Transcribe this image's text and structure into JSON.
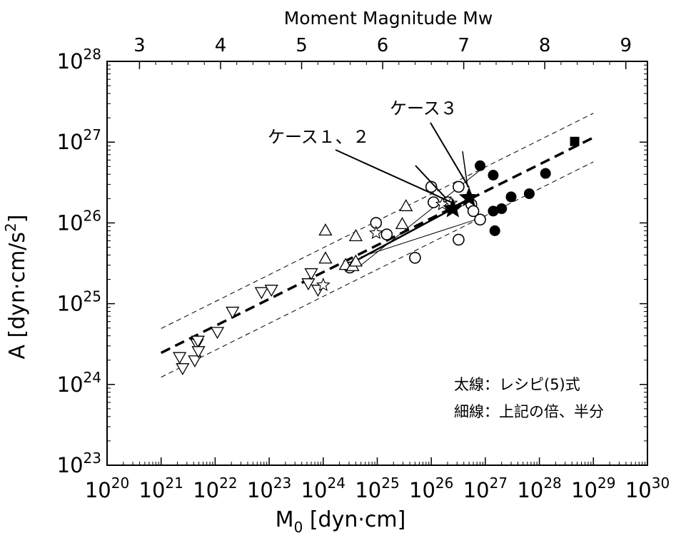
{
  "chart_data": {
    "type": "scatter",
    "title": "",
    "xlabel": "M",
    "xlabel_sub": "0",
    "xlabel_unit": " [dyn·cm]",
    "ylabel": "A [dyn·cm/s",
    "ylabel_sup": "2",
    "ylabel_end": "]",
    "top_axis_label": "Moment Magnitude Mw",
    "x_scale": "log",
    "y_scale": "log",
    "xlim": [
      1e+20,
      1e+30
    ],
    "ylim": [
      1e+23,
      1e+28
    ],
    "x_ticks": [
      {
        "base": "10",
        "exp": "20"
      },
      {
        "base": "10",
        "exp": "21"
      },
      {
        "base": "10",
        "exp": "22"
      },
      {
        "base": "10",
        "exp": "23"
      },
      {
        "base": "10",
        "exp": "24"
      },
      {
        "base": "10",
        "exp": "25"
      },
      {
        "base": "10",
        "exp": "26"
      },
      {
        "base": "10",
        "exp": "27"
      },
      {
        "base": "10",
        "exp": "28"
      },
      {
        "base": "10",
        "exp": "29"
      },
      {
        "base": "10",
        "exp": "30"
      }
    ],
    "y_ticks": [
      {
        "base": "10",
        "exp": "23"
      },
      {
        "base": "10",
        "exp": "24"
      },
      {
        "base": "10",
        "exp": "25"
      },
      {
        "base": "10",
        "exp": "26"
      },
      {
        "base": "10",
        "exp": "27"
      },
      {
        "base": "10",
        "exp": "28"
      }
    ],
    "top_ticks": [
      "3",
      "4",
      "5",
      "6",
      "7",
      "8",
      "9"
    ],
    "top_tick_values": [
      3,
      4,
      5,
      6,
      7,
      8,
      9
    ],
    "recipe_line": {
      "x": [
        1e+21,
        1e+29
      ],
      "y": [
        2.46e+24,
        1.14e+27
      ]
    },
    "bold_segment": {
      "x": [
        3.7e+24,
        2.5e+26
      ],
      "y": [
        3.3e+25,
        1.5e+26
      ]
    },
    "thin_lines": [
      {
        "x": [
          5e+24,
          8e+26
        ],
        "y": [
          3e+25,
          4.5e+26
        ]
      },
      {
        "x": [
          5e+24,
          1e+27
        ],
        "y": [
          3.8e+25,
          1.2e+26
        ]
      }
    ],
    "band_lines": [
      {
        "x": [
          1e+21,
          1e+29
        ],
        "y": [
          4.92e+24,
          2.28e+27
        ]
      },
      {
        "x": [
          1e+21,
          1e+29
        ],
        "y": [
          1.23e+24,
          5.7e+26
        ]
      }
    ],
    "series": [
      {
        "marker": "open-circle",
        "points": [
          {
            "x": 3.1e+24,
            "y": 2.8e+25
          },
          {
            "x": 9.5e+24,
            "y": 1e+26
          },
          {
            "x": 1.5e+25,
            "y": 7.2e+25
          },
          {
            "x": 5e+25,
            "y": 3.7e+25
          },
          {
            "x": 1e+26,
            "y": 2.8e+26
          },
          {
            "x": 1.1e+26,
            "y": 1.8e+26
          },
          {
            "x": 2e+26,
            "y": 1.8e+26
          },
          {
            "x": 3.2e+26,
            "y": 2.8e+26
          },
          {
            "x": 3.2e+26,
            "y": 6.2e+25
          },
          {
            "x": 5.5e+26,
            "y": 1.7e+26
          },
          {
            "x": 6e+26,
            "y": 1.4e+26
          },
          {
            "x": 8e+26,
            "y": 1.1e+26
          }
        ]
      },
      {
        "marker": "filled-circle",
        "points": [
          {
            "x": 8e+26,
            "y": 5.1e+26
          },
          {
            "x": 1.4e+27,
            "y": 3.9e+26
          },
          {
            "x": 1.4e+27,
            "y": 1.4e+26
          },
          {
            "x": 1.5e+27,
            "y": 8e+25
          },
          {
            "x": 2e+27,
            "y": 1.5e+26
          },
          {
            "x": 3e+27,
            "y": 2.1e+26
          },
          {
            "x": 6.5e+27,
            "y": 2.3e+26
          },
          {
            "x": 1.3e+28,
            "y": 4.1e+26
          }
        ]
      },
      {
        "marker": "open-triangle-up",
        "points": [
          {
            "x": 1.1e+24,
            "y": 3.6e+25
          },
          {
            "x": 1.1e+24,
            "y": 8e+25
          },
          {
            "x": 2.6e+24,
            "y": 3e+25
          },
          {
            "x": 3.5e+24,
            "y": 2.9e+25
          },
          {
            "x": 4e+24,
            "y": 3.3e+25
          },
          {
            "x": 4e+24,
            "y": 6.8e+25
          },
          {
            "x": 2.9e+25,
            "y": 9.6e+25
          },
          {
            "x": 3.4e+25,
            "y": 1.6e+26
          }
        ]
      },
      {
        "marker": "open-triangle-down",
        "points": [
          {
            "x": 2.2e+21,
            "y": 2.2e+24
          },
          {
            "x": 2.5e+21,
            "y": 1.6e+24
          },
          {
            "x": 4.2e+21,
            "y": 2e+24
          },
          {
            "x": 4.6e+21,
            "y": 3.2e+24
          },
          {
            "x": 4.8e+21,
            "y": 3.5e+24
          },
          {
            "x": 4.9e+21,
            "y": 2.6e+24
          },
          {
            "x": 1.1e+22,
            "y": 4.5e+24
          },
          {
            "x": 2.1e+22,
            "y": 8e+24
          },
          {
            "x": 7.2e+22,
            "y": 1.4e+25
          },
          {
            "x": 1.1e+23,
            "y": 1.5e+25
          },
          {
            "x": 5.3e+23,
            "y": 1.8e+25
          },
          {
            "x": 6e+23,
            "y": 2.4e+25
          },
          {
            "x": 8e+23,
            "y": 1.5e+25
          }
        ]
      },
      {
        "marker": "open-star",
        "points": [
          {
            "x": 1e+24,
            "y": 1.7e+25
          },
          {
            "x": 9.5e+24,
            "y": 7.5e+25
          },
          {
            "x": 1.6e+26,
            "y": 1.7e+26
          },
          {
            "x": 2.3e+26,
            "y": 1.75e+26
          }
        ]
      },
      {
        "marker": "filled-star",
        "points": [
          {
            "x": 2.5e+26,
            "y": 1.5e+26
          },
          {
            "x": 5e+26,
            "y": 2.05e+26
          }
        ]
      },
      {
        "marker": "filled-square",
        "points": [
          {
            "x": 4.5e+28,
            "y": 1.02e+27
          }
        ]
      }
    ],
    "annotations": [
      {
        "text": "ケース３",
        "x_label": 1.6e+26,
        "y_label": 1.7e+27,
        "arrow_to": {
          "x": 5e+26,
          "y": 2.05e+26
        }
      },
      {
        "text": "ケース１、２",
        "x_label": 1.2e+24,
        "y_label": 1.1e+27,
        "arrow_to": {
          "x": 2.5e+26,
          "y": 1.5e+26
        }
      }
    ],
    "legend_notes": [
      "太線：レシピ(5)式",
      "細線：上記の倍、半分"
    ],
    "legend_position": "bottom-right",
    "grid": false
  }
}
